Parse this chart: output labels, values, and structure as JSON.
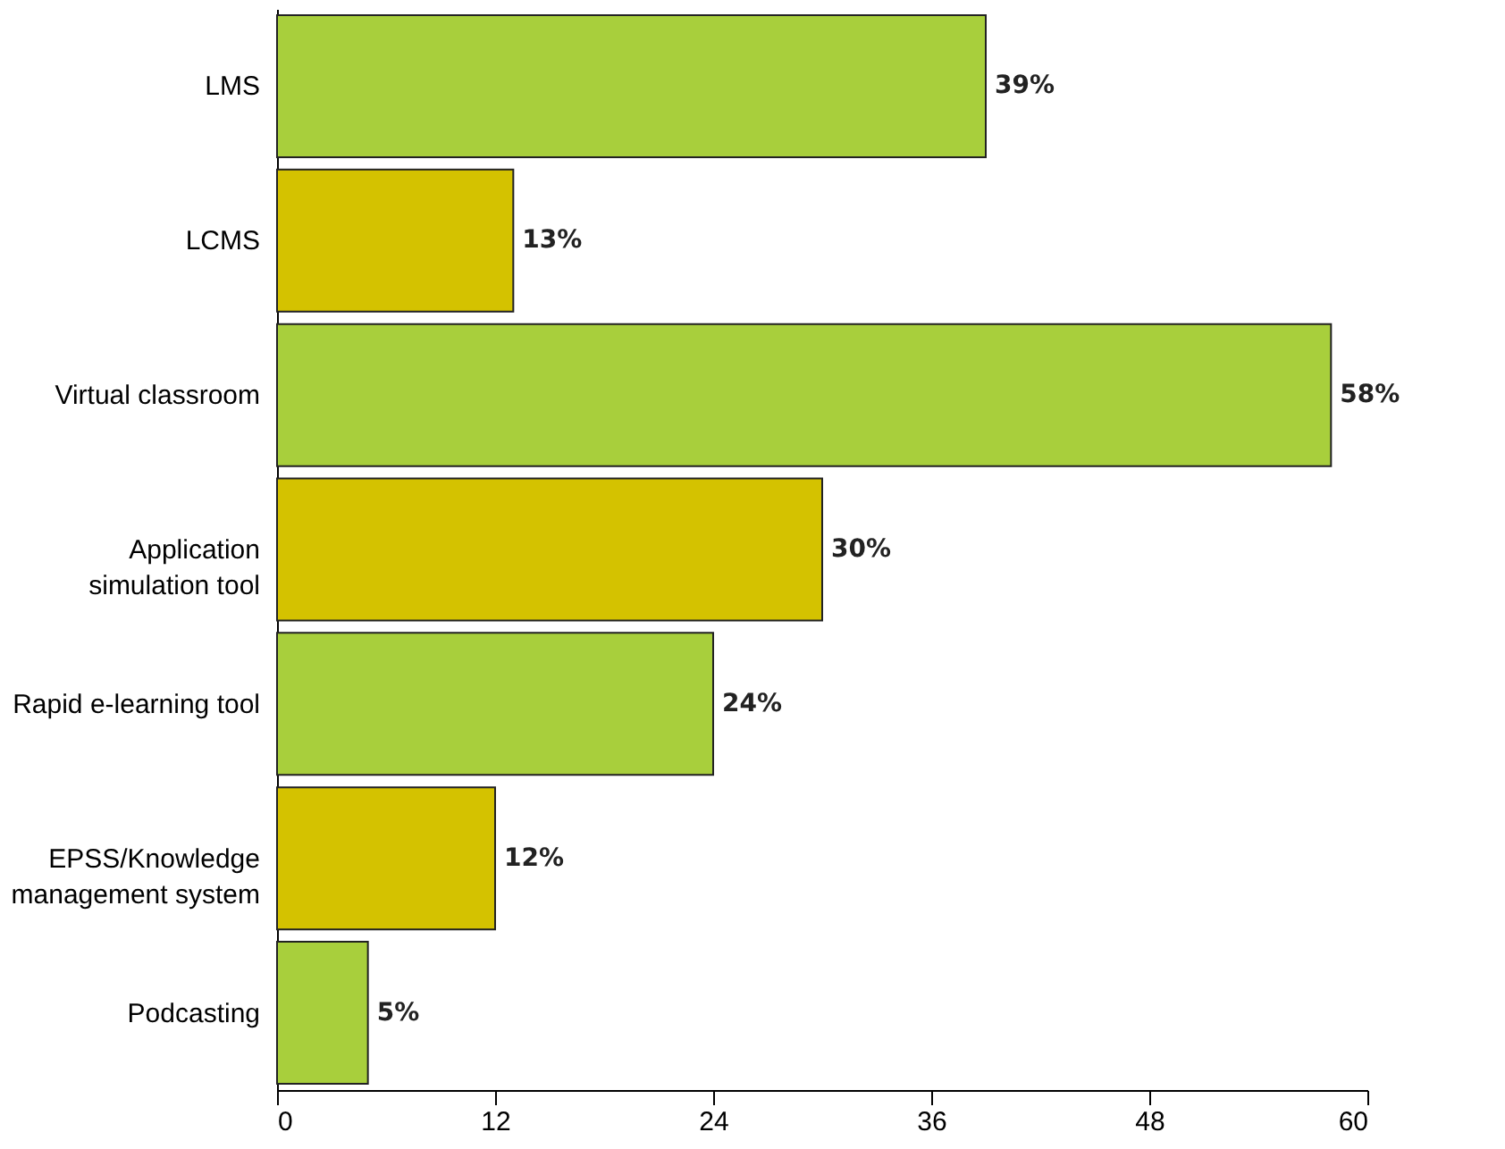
{
  "chart_data": {
    "type": "bar",
    "orientation": "horizontal",
    "categories": [
      "LMS",
      "LCMS",
      "Virtual classroom",
      "Application\nsimulation tool",
      "Rapid e-learning tool",
      "EPSS/Knowledge\nmanagement system",
      "Podcasting"
    ],
    "values": [
      39,
      13,
      58,
      30,
      24,
      12,
      5
    ],
    "colors": [
      "#a8cf3c",
      "#d4c200",
      "#a8cf3c",
      "#d4c200",
      "#a8cf3c",
      "#d4c200",
      "#a8cf3c"
    ],
    "value_labels": [
      "39%",
      "13%",
      "58%",
      "30%",
      "24%",
      "12%",
      "5%"
    ],
    "xlim": [
      0,
      60
    ],
    "xticks": [
      0,
      12,
      24,
      36,
      48,
      60
    ],
    "grid": false
  }
}
